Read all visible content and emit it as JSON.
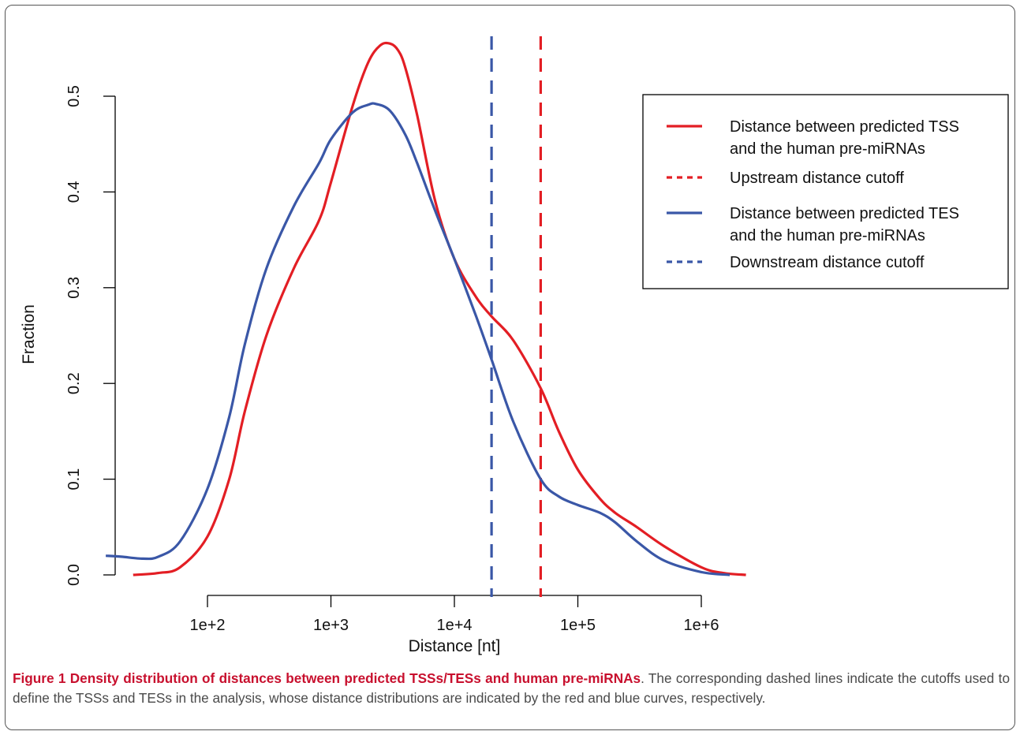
{
  "chart_data": {
    "type": "line",
    "title": "",
    "xlabel": "Distance [nt]",
    "ylabel": "Fraction",
    "x_scale": "log10",
    "xlim": [
      15,
      3000000
    ],
    "ylim": [
      0,
      0.56
    ],
    "x_ticks": [
      100,
      1000,
      10000,
      100000,
      1000000
    ],
    "x_tick_labels": [
      "1e+2",
      "1e+3",
      "1e+4",
      "1e+5",
      "1e+6"
    ],
    "y_ticks": [
      0.0,
      0.1,
      0.2,
      0.3,
      0.4,
      0.5
    ],
    "y_tick_labels": [
      "0.0",
      "0.1",
      "0.2",
      "0.3",
      "0.4",
      "0.5"
    ],
    "grid": false,
    "legend_position": "top-right",
    "series": [
      {
        "name": "Distance between predicted TSS and the human pre-miRNAs",
        "name_lines": [
          "Distance between predicted TSS",
          "and the human pre-miRNAs"
        ],
        "color": "#e31e24",
        "style": "solid",
        "x": [
          25,
          40,
          60,
          100,
          150,
          200,
          300,
          500,
          800,
          1000,
          1500,
          2000,
          2500,
          3000,
          3500,
          4000,
          5000,
          7000,
          10000,
          15000,
          20000,
          30000,
          50000,
          70000,
          100000,
          150000,
          200000,
          300000,
          500000,
          1000000,
          1500000,
          2300000
        ],
        "y": [
          0.0,
          0.002,
          0.008,
          0.04,
          0.1,
          0.17,
          0.25,
          0.32,
          0.37,
          0.41,
          0.49,
          0.535,
          0.553,
          0.555,
          0.548,
          0.53,
          0.48,
          0.39,
          0.33,
          0.29,
          0.27,
          0.245,
          0.195,
          0.15,
          0.11,
          0.08,
          0.065,
          0.05,
          0.03,
          0.008,
          0.002,
          0.0
        ]
      },
      {
        "name": "Upstream distance cutoff",
        "color": "#e31e24",
        "style": "dashed",
        "vline_x": 50000
      },
      {
        "name": "Distance between predicted TES and the human pre-miRNAs",
        "name_lines": [
          "Distance between predicted TES",
          "and the human pre-miRNAs"
        ],
        "color": "#3a57a7",
        "style": "solid",
        "x": [
          15,
          20,
          30,
          40,
          60,
          100,
          150,
          200,
          300,
          500,
          800,
          1000,
          1500,
          2000,
          2300,
          3000,
          4000,
          5000,
          7000,
          10000,
          15000,
          20000,
          30000,
          50000,
          70000,
          100000,
          150000,
          200000,
          300000,
          500000,
          1000000,
          1700000
        ],
        "y": [
          0.02,
          0.019,
          0.017,
          0.019,
          0.035,
          0.09,
          0.165,
          0.24,
          0.32,
          0.385,
          0.43,
          0.455,
          0.483,
          0.491,
          0.492,
          0.485,
          0.46,
          0.43,
          0.38,
          0.33,
          0.27,
          0.225,
          0.16,
          0.1,
          0.082,
          0.073,
          0.065,
          0.055,
          0.035,
          0.015,
          0.003,
          0.0
        ]
      },
      {
        "name": "Downstream distance cutoff",
        "color": "#3a57a7",
        "style": "dashed",
        "vline_x": 20000
      }
    ]
  },
  "caption": {
    "label": "Figure 1 Density distribution of distances between predicted TSSs/TESs and human pre-miRNAs",
    "text": ". The corresponding dashed lines indicate the cutoffs used to define the TSSs and TESs in the analysis, whose distance distributions are indicated by the red and blue curves, respectively."
  }
}
